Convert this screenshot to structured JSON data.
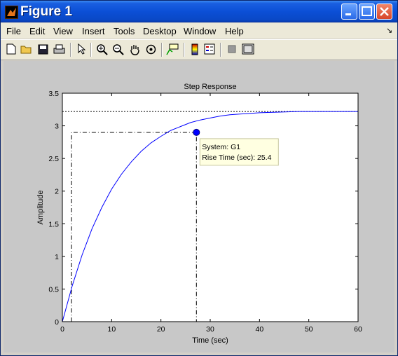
{
  "window": {
    "title": "Figure 1"
  },
  "menu": [
    "File",
    "Edit",
    "View",
    "Insert",
    "Tools",
    "Desktop",
    "Window",
    "Help"
  ],
  "menu_corner_arrow": "↘",
  "toolbar_icons": [
    "new-file-icon",
    "open-folder-icon",
    "save-icon",
    "print-icon",
    "pointer-icon",
    "zoom-in-icon",
    "zoom-out-icon",
    "pan-hand-icon",
    "rotate-3d-icon",
    "data-cursor-icon",
    "colorbar-icon",
    "legend-icon",
    "hide-plot-tools-icon",
    "show-plot-tools-icon"
  ],
  "chart_data": {
    "type": "line",
    "title": "Step Response",
    "xlabel": "Time (sec)",
    "ylabel": "Amplitude",
    "xlim": [
      0,
      60
    ],
    "ylim": [
      0,
      3.5
    ],
    "xticks": [
      "0",
      "10",
      "20",
      "30",
      "40",
      "50",
      "60"
    ],
    "yticks": [
      "0",
      "0.5",
      "1",
      "1.5",
      "2",
      "2.5",
      "3",
      "3.5"
    ],
    "grid": false,
    "steady_state": 3.22,
    "series": [
      {
        "color": "#0000ff",
        "x": [
          0,
          2,
          4,
          6,
          8,
          10,
          12,
          14,
          16,
          18,
          20,
          22,
          24,
          26,
          28,
          30,
          32,
          34,
          36,
          38,
          40,
          44,
          48,
          52,
          56,
          60
        ],
        "y": [
          0,
          0.55,
          1.02,
          1.42,
          1.75,
          2.03,
          2.26,
          2.45,
          2.61,
          2.74,
          2.84,
          2.93,
          2.99,
          3.05,
          3.09,
          3.12,
          3.15,
          3.17,
          3.18,
          3.19,
          3.2,
          3.21,
          3.22,
          3.22,
          3.22,
          3.22
        ]
      }
    ],
    "markers": [
      {
        "x": 1.85,
        "y": 0.29
      },
      {
        "x": 27.2,
        "y": 2.9
      }
    ],
    "datatip": {
      "line1": "System: G1",
      "line2": "Rise Time (sec): 25.4"
    }
  }
}
